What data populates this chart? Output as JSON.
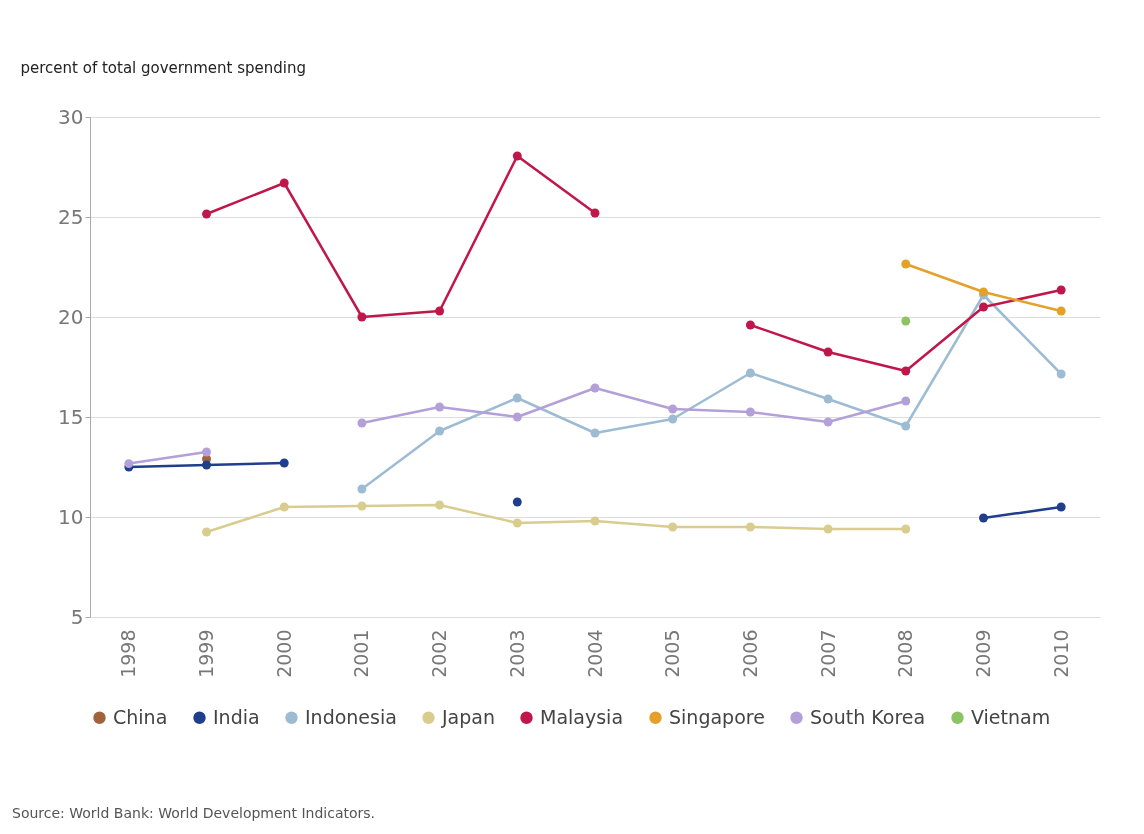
{
  "chart_data": {
    "type": "line",
    "ylabel": "percent of total government spending",
    "categories": [
      "1998",
      "1999",
      "2000",
      "2001",
      "2002",
      "2003",
      "2004",
      "2005",
      "2006",
      "2007",
      "2008",
      "2009",
      "2010"
    ],
    "ylim": [
      5,
      30
    ],
    "yticks": [
      5,
      10,
      15,
      20,
      25,
      30
    ],
    "grid": "y",
    "legend": "bottom",
    "marker": "circle",
    "line_style": "solid",
    "annotations": [
      "Source: World Bank: World Development Indicators."
    ],
    "series": [
      {
        "name": "China",
        "color": "#a0643c",
        "values": [
          null,
          12.9,
          null,
          null,
          null,
          null,
          null,
          null,
          null,
          null,
          null,
          null,
          null
        ]
      },
      {
        "name": "India",
        "color": "#1f3f8c",
        "values": [
          12.5,
          12.6,
          12.7,
          null,
          null,
          10.75,
          null,
          null,
          null,
          null,
          null,
          9.95,
          10.5
        ]
      },
      {
        "name": "Indonesia",
        "color": "#9dbcd4",
        "values": [
          null,
          null,
          null,
          11.4,
          14.3,
          15.95,
          14.2,
          14.9,
          17.2,
          15.9,
          14.55,
          21.1,
          17.15
        ]
      },
      {
        "name": "Japan",
        "color": "#d9cc8f",
        "values": [
          null,
          9.25,
          10.5,
          10.55,
          10.6,
          9.7,
          9.8,
          9.5,
          9.5,
          9.4,
          9.4,
          null,
          null
        ]
      },
      {
        "name": "Malaysia",
        "color": "#c0174b",
        "values": [
          null,
          25.15,
          26.7,
          20.0,
          20.3,
          28.05,
          25.2,
          null,
          19.6,
          18.25,
          17.3,
          20.5,
          21.35
        ]
      },
      {
        "name": "Singapore",
        "color": "#e3a12a",
        "values": [
          null,
          null,
          null,
          null,
          null,
          null,
          null,
          null,
          null,
          null,
          22.65,
          21.25,
          20.3
        ]
      },
      {
        "name": "South Korea",
        "color": "#b3a0d8",
        "values": [
          12.67,
          13.25,
          null,
          14.7,
          15.5,
          15.0,
          16.45,
          15.4,
          15.25,
          14.75,
          15.8,
          null,
          null
        ]
      },
      {
        "name": "Vietnam",
        "color": "#8cc464",
        "values": [
          null,
          null,
          null,
          null,
          null,
          null,
          null,
          null,
          null,
          null,
          19.8,
          null,
          null
        ]
      }
    ]
  }
}
